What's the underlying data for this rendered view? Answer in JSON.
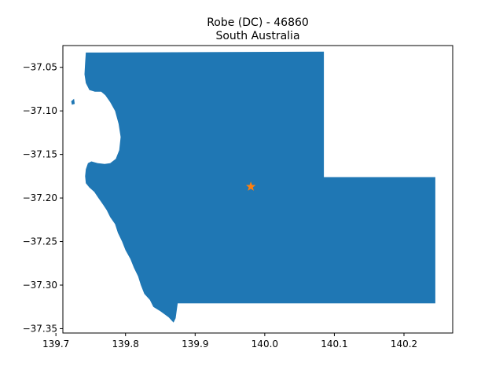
{
  "title": {
    "line1": "Robe (DC) - 46860",
    "line2": "South Australia"
  },
  "colors": {
    "region_fill": "#1f77b4",
    "marker": "#ff7f0e",
    "axes": "#000000"
  },
  "map": {
    "type": "region-outline",
    "xlim": [
      139.71,
      140.27
    ],
    "ylim": [
      -37.355,
      -37.025
    ],
    "x_ticks": [
      {
        "value": 139.7,
        "label": "139.7"
      },
      {
        "value": 139.8,
        "label": "139.8"
      },
      {
        "value": 139.9,
        "label": "139.9"
      },
      {
        "value": 140.0,
        "label": "140.0"
      },
      {
        "value": 140.1,
        "label": "140.1"
      },
      {
        "value": 140.2,
        "label": "140.2"
      }
    ],
    "y_ticks": [
      {
        "value": -37.05,
        "label": "−37.05"
      },
      {
        "value": -37.1,
        "label": "−37.10"
      },
      {
        "value": -37.15,
        "label": "−37.15"
      },
      {
        "value": -37.2,
        "label": "−37.20"
      },
      {
        "value": -37.25,
        "label": "−37.25"
      },
      {
        "value": -37.3,
        "label": "−37.30"
      },
      {
        "value": -37.35,
        "label": "−37.35"
      }
    ],
    "marker": {
      "symbol": "star",
      "lon": 139.98,
      "lat": -37.187
    },
    "region": [
      [
        139.743,
        -37.033
      ],
      [
        140.085,
        -37.032
      ],
      [
        140.085,
        -37.176
      ],
      [
        140.245,
        -37.176
      ],
      [
        140.245,
        -37.321
      ],
      [
        139.875,
        -37.321
      ],
      [
        139.872,
        -37.338
      ],
      [
        139.869,
        -37.343
      ],
      [
        139.862,
        -37.337
      ],
      [
        139.85,
        -37.33
      ],
      [
        139.84,
        -37.325
      ],
      [
        139.835,
        -37.317
      ],
      [
        139.827,
        -37.31
      ],
      [
        139.822,
        -37.3
      ],
      [
        139.818,
        -37.29
      ],
      [
        139.812,
        -37.28
      ],
      [
        139.807,
        -37.27
      ],
      [
        139.8,
        -37.26
      ],
      [
        139.795,
        -37.25
      ],
      [
        139.789,
        -37.24
      ],
      [
        139.785,
        -37.23
      ],
      [
        139.778,
        -37.222
      ],
      [
        139.773,
        -37.214
      ],
      [
        139.768,
        -37.208
      ],
      [
        139.761,
        -37.2
      ],
      [
        139.755,
        -37.193
      ],
      [
        139.748,
        -37.188
      ],
      [
        139.743,
        -37.183
      ],
      [
        139.742,
        -37.175
      ],
      [
        139.743,
        -37.167
      ],
      [
        139.746,
        -37.16
      ],
      [
        139.751,
        -37.158
      ],
      [
        139.76,
        -37.16
      ],
      [
        139.77,
        -37.161
      ],
      [
        139.778,
        -37.16
      ],
      [
        139.786,
        -37.155
      ],
      [
        139.791,
        -37.145
      ],
      [
        139.793,
        -37.13
      ],
      [
        139.79,
        -37.115
      ],
      [
        139.785,
        -37.1
      ],
      [
        139.778,
        -37.09
      ],
      [
        139.771,
        -37.082
      ],
      [
        139.765,
        -37.078
      ],
      [
        139.756,
        -37.078
      ],
      [
        139.748,
        -37.076
      ],
      [
        139.743,
        -37.068
      ],
      [
        139.741,
        -37.058
      ],
      [
        139.742,
        -37.045
      ]
    ],
    "islet": [
      [
        139.722,
        -37.089
      ],
      [
        139.726,
        -37.086
      ],
      [
        139.727,
        -37.092
      ],
      [
        139.723,
        -37.093
      ]
    ]
  }
}
